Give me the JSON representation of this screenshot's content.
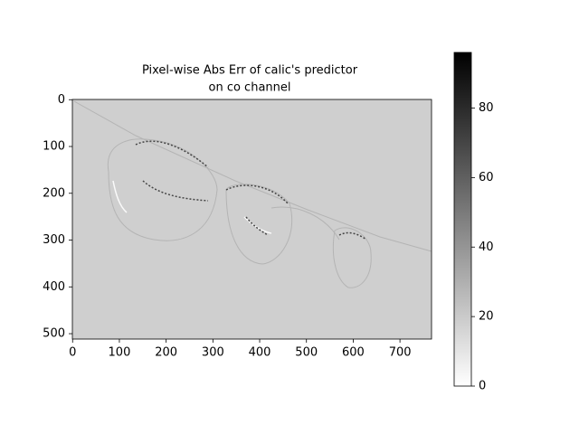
{
  "chart_data": {
    "type": "heatmap",
    "title": [
      "Pixel-wise Abs Err of calic's predictor",
      "on co channel"
    ],
    "xlim": [
      -0.5,
      767.5
    ],
    "xticks": [
      0,
      100,
      200,
      300,
      400,
      500,
      600,
      700
    ],
    "ylim": [
      511.5,
      -0.5
    ],
    "yticks": [
      0,
      100,
      200,
      300,
      400,
      500
    ],
    "cmap": "gray_r",
    "clim": [
      0,
      96
    ],
    "cticks": [
      0,
      20,
      40,
      60,
      80
    ]
  }
}
